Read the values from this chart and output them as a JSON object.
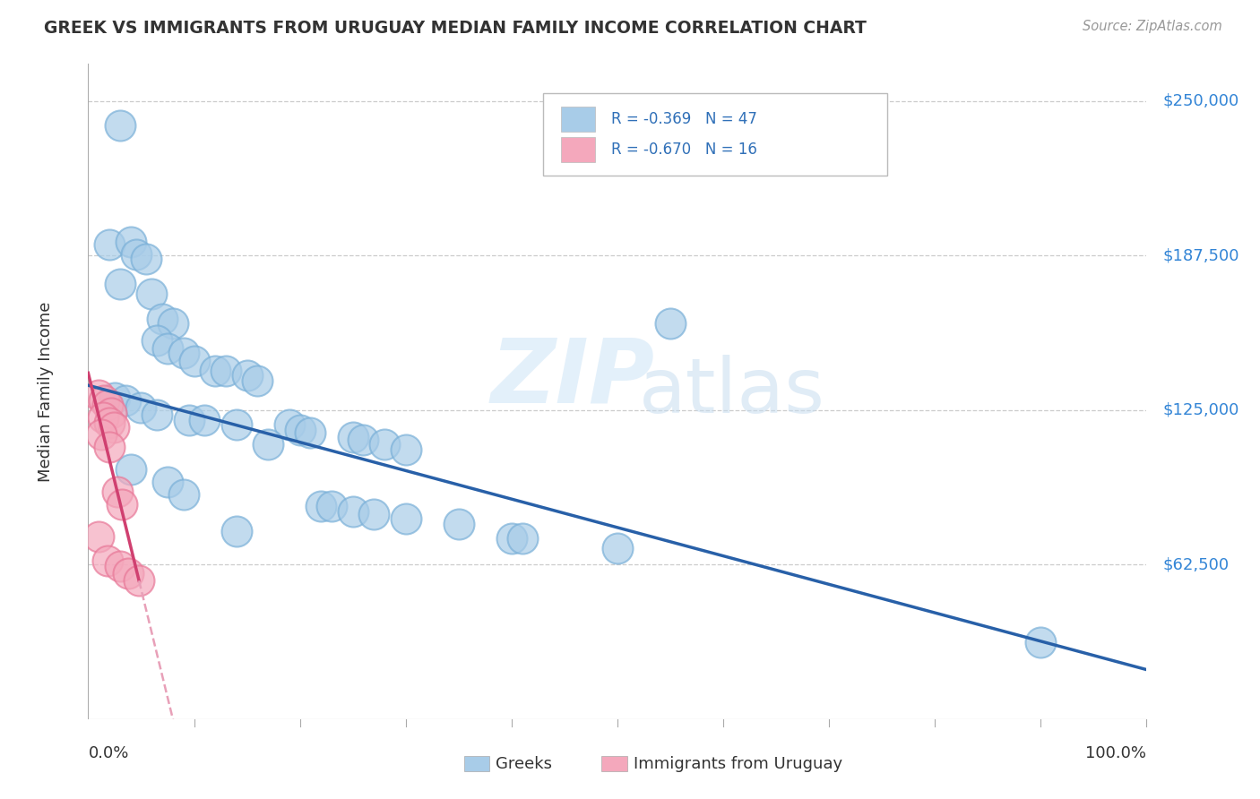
{
  "title": "GREEK VS IMMIGRANTS FROM URUGUAY MEDIAN FAMILY INCOME CORRELATION CHART",
  "source": "Source: ZipAtlas.com",
  "ylabel": "Median Family Income",
  "xlim": [
    0,
    1.0
  ],
  "ylim": [
    0,
    265000
  ],
  "ytick_labels": [
    "$62,500",
    "$125,000",
    "$187,500",
    "$250,000"
  ],
  "ytick_values": [
    62500,
    125000,
    187500,
    250000
  ],
  "watermark_zip": "ZIP",
  "watermark_atlas": "atlas",
  "bottom_legend": [
    "Greeks",
    "Immigrants from Uruguay"
  ],
  "blue_color": "#a8cce8",
  "pink_color": "#f4a8bc",
  "blue_edge_color": "#7ab0d8",
  "pink_edge_color": "#e87898",
  "blue_line_color": "#2860a8",
  "pink_line_color": "#d04070",
  "pink_dashed_color": "#e8a0b8",
  "legend_blue_label": "R = -0.369   N = 47",
  "legend_pink_label": "R = -0.670   N = 16",
  "blue_scatter": [
    [
      0.03,
      240000
    ],
    [
      0.02,
      192000
    ],
    [
      0.04,
      193000
    ],
    [
      0.045,
      188000
    ],
    [
      0.055,
      186000
    ],
    [
      0.03,
      176000
    ],
    [
      0.06,
      172000
    ],
    [
      0.07,
      162000
    ],
    [
      0.08,
      160000
    ],
    [
      0.065,
      153000
    ],
    [
      0.075,
      150000
    ],
    [
      0.09,
      148000
    ],
    [
      0.1,
      145000
    ],
    [
      0.12,
      141000
    ],
    [
      0.13,
      141000
    ],
    [
      0.15,
      139000
    ],
    [
      0.16,
      137000
    ],
    [
      0.025,
      130000
    ],
    [
      0.035,
      129000
    ],
    [
      0.05,
      126000
    ],
    [
      0.065,
      123000
    ],
    [
      0.095,
      121000
    ],
    [
      0.11,
      121000
    ],
    [
      0.14,
      119000
    ],
    [
      0.19,
      119000
    ],
    [
      0.2,
      117000
    ],
    [
      0.21,
      116000
    ],
    [
      0.25,
      114000
    ],
    [
      0.26,
      113000
    ],
    [
      0.17,
      111000
    ],
    [
      0.28,
      111000
    ],
    [
      0.3,
      109000
    ],
    [
      0.04,
      101000
    ],
    [
      0.075,
      96000
    ],
    [
      0.09,
      91000
    ],
    [
      0.22,
      86000
    ],
    [
      0.23,
      86000
    ],
    [
      0.25,
      84000
    ],
    [
      0.27,
      83000
    ],
    [
      0.3,
      81000
    ],
    [
      0.35,
      79000
    ],
    [
      0.14,
      76000
    ],
    [
      0.4,
      73000
    ],
    [
      0.41,
      73000
    ],
    [
      0.5,
      69000
    ],
    [
      0.9,
      31000
    ],
    [
      0.55,
      160000
    ]
  ],
  "pink_scatter": [
    [
      0.01,
      131000
    ],
    [
      0.015,
      129000
    ],
    [
      0.018,
      127000
    ],
    [
      0.022,
      124000
    ],
    [
      0.014,
      122000
    ],
    [
      0.02,
      120000
    ],
    [
      0.024,
      118000
    ],
    [
      0.012,
      115000
    ],
    [
      0.02,
      110000
    ],
    [
      0.028,
      92000
    ],
    [
      0.032,
      87000
    ],
    [
      0.01,
      74000
    ],
    [
      0.018,
      64000
    ],
    [
      0.03,
      62000
    ],
    [
      0.038,
      59000
    ],
    [
      0.048,
      56000
    ]
  ]
}
